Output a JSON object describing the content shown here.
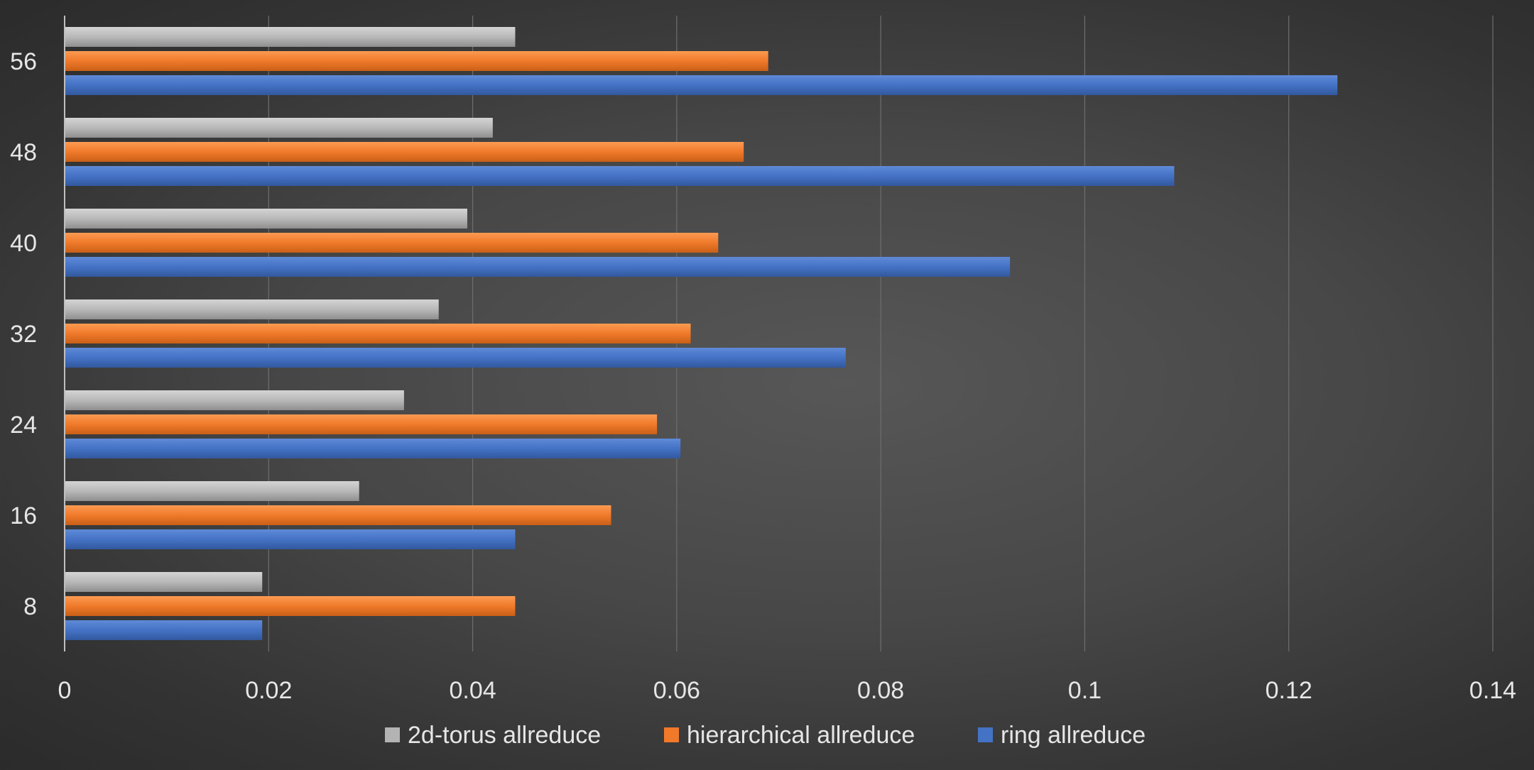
{
  "chart_data": {
    "type": "bar",
    "orientation": "horizontal",
    "title": "",
    "xlabel": "",
    "ylabel": "",
    "categories": [
      "8",
      "16",
      "24",
      "32",
      "40",
      "48",
      "56"
    ],
    "series": [
      {
        "name": "2d-torus allreduce",
        "color": "#b3b3b3",
        "values": [
          0.0193,
          0.0288,
          0.0332,
          0.0366,
          0.0394,
          0.0419,
          0.0441
        ]
      },
      {
        "name": "hierarchical allreduce",
        "color": "#f07a2a",
        "values": [
          0.0441,
          0.0535,
          0.058,
          0.0613,
          0.064,
          0.0665,
          0.0689
        ]
      },
      {
        "name": "ring allreduce",
        "color": "#4472c4",
        "values": [
          0.0193,
          0.0441,
          0.0603,
          0.0765,
          0.0926,
          0.1087,
          0.1247
        ]
      }
    ],
    "xlim": [
      0,
      0.14
    ],
    "xticks": [
      "0",
      "0.02",
      "0.04",
      "0.06",
      "0.08",
      "0.1",
      "0.12",
      "0.14"
    ],
    "grid": true,
    "legend_position": "bottom"
  }
}
